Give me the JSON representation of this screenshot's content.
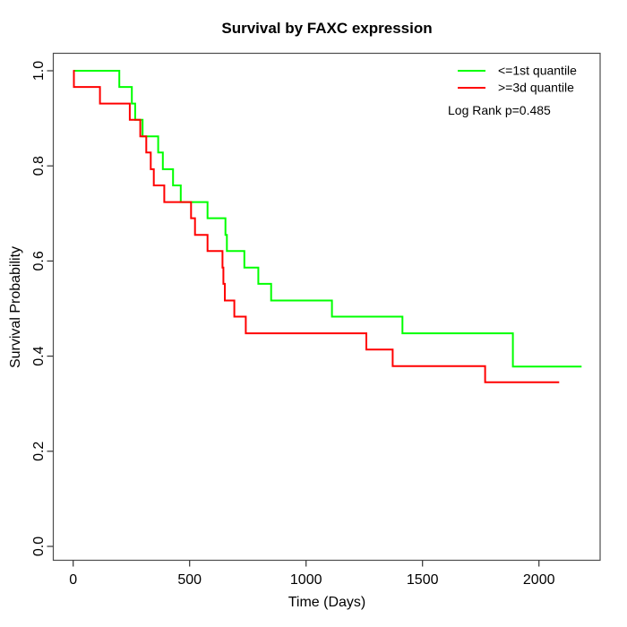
{
  "chart_data": {
    "type": "line",
    "variant": "kaplan-meier-step-curves",
    "title": "Survival by FAXC expression",
    "xlabel": "Time (Days)",
    "ylabel": "Survival Probability",
    "x_ticks": [
      0,
      500,
      1000,
      1500,
      2000
    ],
    "y_ticks": [
      "0.0",
      "0.2",
      "0.4",
      "0.6",
      "0.8",
      "1.0"
    ],
    "xlim": [
      0,
      2200
    ],
    "ylim": [
      0.0,
      1.0
    ],
    "grid": false,
    "legend_position": "top-right",
    "annotation": "Log Rank p=0.485",
    "series": [
      {
        "name": "<=1st quantile",
        "color": "#00ff00",
        "points": [
          [
            0,
            1.0
          ],
          [
            198,
            0.966
          ],
          [
            252,
            0.931
          ],
          [
            266,
            0.897
          ],
          [
            298,
            0.862
          ],
          [
            365,
            0.828
          ],
          [
            385,
            0.793
          ],
          [
            429,
            0.759
          ],
          [
            462,
            0.724
          ],
          [
            577,
            0.69
          ],
          [
            654,
            0.655
          ],
          [
            660,
            0.621
          ],
          [
            735,
            0.586
          ],
          [
            795,
            0.552
          ],
          [
            850,
            0.517
          ],
          [
            1111,
            0.483
          ],
          [
            1414,
            0.448
          ],
          [
            1888,
            0.378
          ]
        ],
        "end_time": 2183
      },
      {
        "name": ">=3d quantile",
        "color": "#ff0000",
        "points": [
          [
            0,
            1.0
          ],
          [
            3,
            0.966
          ],
          [
            115,
            0.931
          ],
          [
            243,
            0.897
          ],
          [
            288,
            0.862
          ],
          [
            314,
            0.828
          ],
          [
            333,
            0.793
          ],
          [
            346,
            0.759
          ],
          [
            391,
            0.724
          ],
          [
            506,
            0.69
          ],
          [
            523,
            0.655
          ],
          [
            577,
            0.621
          ],
          [
            641,
            0.586
          ],
          [
            645,
            0.552
          ],
          [
            651,
            0.517
          ],
          [
            692,
            0.483
          ],
          [
            741,
            0.448
          ],
          [
            1259,
            0.414
          ],
          [
            1372,
            0.379
          ],
          [
            1769,
            0.345
          ]
        ],
        "end_time": 2087
      }
    ]
  }
}
